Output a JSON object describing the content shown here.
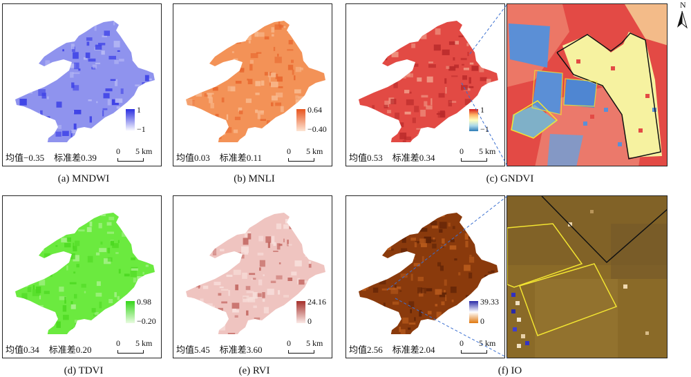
{
  "panels": [
    {
      "id": "a",
      "caption": "(a) MNDWI",
      "stat": "均值−0.35",
      "std": "标准差0.39",
      "cb_max": "1",
      "cb_min": "−1",
      "fill": "#8f93ee",
      "dark": "#3a3ee6",
      "light": "#b7baf5",
      "cb_top": "#2b2fe0",
      "cb_bottom": "#ffffff"
    },
    {
      "id": "b",
      "caption": "(b) MNLI",
      "stat": "均值0.03",
      "std": "标准差0.11",
      "cb_max": "0.64",
      "cb_min": "−0.40",
      "fill": "#f39257",
      "dark": "#e8682f",
      "light": "#f8b88c",
      "cb_top": "#e8541e",
      "cb_bottom": "#fde5d4"
    },
    {
      "id": "c",
      "caption": "(c) GNDVI",
      "stat": "均值0.53",
      "std": "标准差0.34",
      "cb_max": "1",
      "cb_min": "−1",
      "fill": "#e24a44",
      "dark": "#b92a2a",
      "light": "#f09a86",
      "cb_top": "#d7191c",
      "cb_bottom": "#2c7bb6"
    },
    {
      "id": "d",
      "caption": "(d) TDVI",
      "stat": "均值0.34",
      "std": "标准差0.20",
      "cb_max": "0.98",
      "cb_min": "−0.20",
      "fill": "#6bea3f",
      "dark": "#4bd820",
      "light": "#a8f28c",
      "cb_top": "#35d61a",
      "cb_bottom": "#e8fbe0"
    },
    {
      "id": "e",
      "caption": "(e) RVI",
      "stat": "均值5.45",
      "std": "标准差3.60",
      "cb_max": "24.16",
      "cb_min": "0",
      "fill": "#efc4c0",
      "dark": "#c46a64",
      "light": "#f8e0dc",
      "cb_top": "#a5302b",
      "cb_bottom": "#fbe9e6"
    },
    {
      "id": "f",
      "caption": "(f) IO",
      "stat": "均值2.56",
      "std": "标准差2.04",
      "cb_max": "39.33",
      "cb_min": "0",
      "fill": "#8a3a0c",
      "dark": "#5e2206",
      "light": "#b85a1c",
      "cb_top": "#2a2aa8",
      "cb_bottom": "#e0780f"
    }
  ],
  "scale": {
    "zero": "0",
    "label": "5 km"
  },
  "north_label": "N",
  "colors": {
    "gndvi_inset_red": "#e34a45",
    "gndvi_inset_yellow": "#f6f2a0",
    "gndvi_inset_blue": "#5b8fd6",
    "io_inset_brown": "#8a6a28",
    "boundary_black": "#111111",
    "plot_yellow": "#f3e531",
    "leader_blue": "#3a6fd0"
  }
}
